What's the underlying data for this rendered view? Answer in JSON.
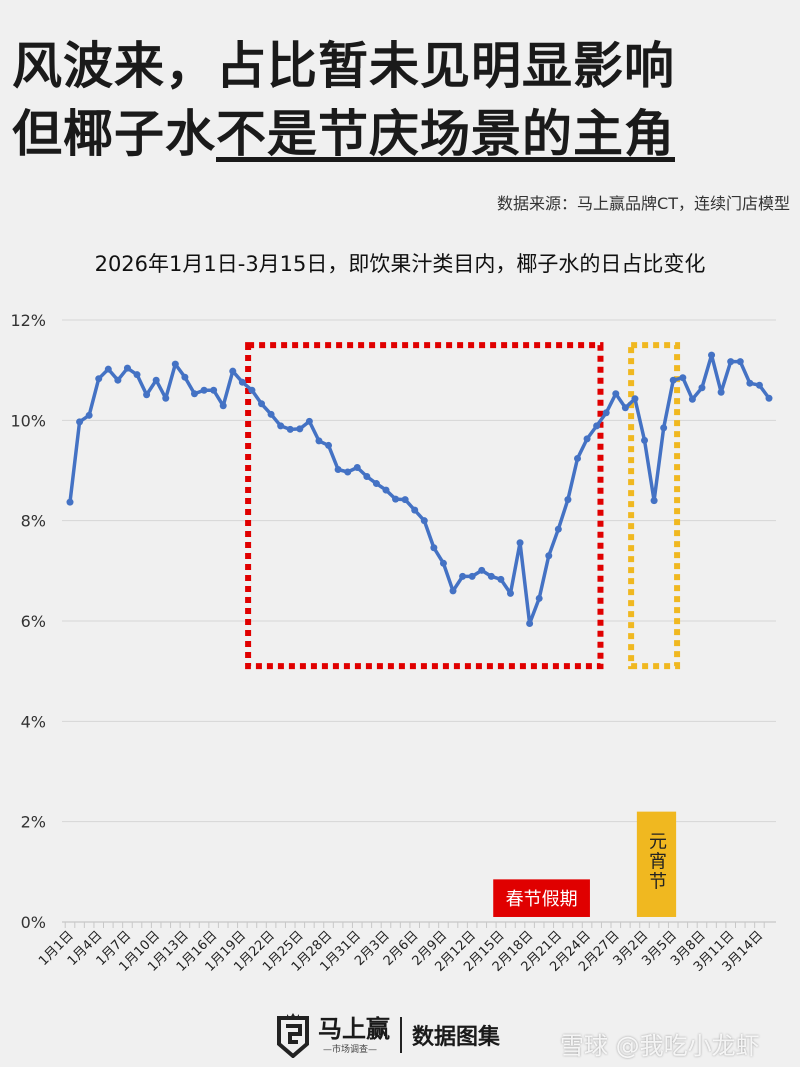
{
  "header": {
    "title_line1": "风波来，占比暂未见明显影响",
    "title_line2_plain": "但椰子水",
    "title_line2_emph": "不是节庆场景的主角",
    "source": "数据来源：马上赢品牌CT，连续门店模型"
  },
  "chart_data": {
    "type": "line",
    "title": "2026年1月1日-3月15日，即饮果汁类目内，椰子水的日占比变化",
    "xlabel": "",
    "ylabel": "",
    "ylim": [
      0,
      12
    ],
    "yticks": [
      "0%",
      "2%",
      "4%",
      "6%",
      "8%",
      "10%",
      "12%"
    ],
    "grid": true,
    "legend": "none",
    "x": [
      "1月1日",
      "1月2日",
      "1月3日",
      "1月4日",
      "1月5日",
      "1月6日",
      "1月7日",
      "1月8日",
      "1月9日",
      "1月10日",
      "1月11日",
      "1月12日",
      "1月13日",
      "1月14日",
      "1月15日",
      "1月16日",
      "1月17日",
      "1月18日",
      "1月19日",
      "1月20日",
      "1月21日",
      "1月22日",
      "1月23日",
      "1月24日",
      "1月25日",
      "1月26日",
      "1月27日",
      "1月28日",
      "1月29日",
      "1月30日",
      "1月31日",
      "2月1日",
      "2月2日",
      "2月3日",
      "2月4日",
      "2月5日",
      "2月6日",
      "2月7日",
      "2月8日",
      "2月9日",
      "2月10日",
      "2月11日",
      "2月12日",
      "2月13日",
      "2月14日",
      "2月15日",
      "2月16日",
      "2月17日",
      "2月18日",
      "2月19日",
      "2月20日",
      "2月21日",
      "2月22日",
      "2月23日",
      "2月24日",
      "2月25日",
      "2月26日",
      "2月27日",
      "2月28日",
      "3月1日",
      "3月2日",
      "3月3日",
      "3月4日",
      "3月5日",
      "3月6日",
      "3月7日",
      "3月8日",
      "3月9日",
      "3月10日",
      "3月11日",
      "3月12日",
      "3月13日",
      "3月14日",
      "3月15日"
    ],
    "xtick_every": 3,
    "values": [
      8.37,
      9.97,
      10.1,
      10.83,
      11.02,
      10.8,
      11.04,
      10.91,
      10.51,
      10.8,
      10.44,
      11.12,
      10.86,
      10.53,
      10.6,
      10.6,
      10.29,
      10.98,
      10.76,
      10.6,
      10.33,
      10.12,
      9.89,
      9.82,
      9.83,
      9.98,
      9.59,
      9.5,
      9.02,
      8.97,
      9.06,
      8.88,
      8.74,
      8.61,
      8.43,
      8.42,
      8.21,
      8.0,
      7.46,
      7.15,
      6.6,
      6.89,
      6.89,
      7.01,
      6.89,
      6.83,
      6.55,
      7.56,
      5.95,
      6.45,
      7.3,
      7.83,
      8.42,
      9.24,
      9.63,
      9.89,
      10.15,
      10.53,
      10.25,
      10.43,
      9.6,
      8.4,
      9.85,
      10.8,
      10.85,
      10.42,
      10.65,
      11.3,
      10.56,
      11.17,
      11.17,
      10.74,
      10.7,
      10.44
    ],
    "line_color": "#4472c4",
    "annotations": [
      {
        "type": "dotted-box",
        "start": "1月20日",
        "end": "2月25日",
        "y_range": [
          5.1,
          11.5
        ],
        "color": "#e00000"
      },
      {
        "type": "dotted-box",
        "start": "3月1日",
        "end": "3月5日",
        "y_range": [
          5.1,
          11.5
        ],
        "color": "#f0b820"
      },
      {
        "type": "label",
        "text": "春节假期",
        "start": "2月14日",
        "end": "2月24日",
        "y_range": [
          0.1,
          0.85
        ],
        "color": "#e00000",
        "text_color": "#ffffff"
      },
      {
        "type": "label",
        "text": "元宵节",
        "start": "3月1日",
        "end": "3月5日",
        "y_range": [
          0.1,
          2.2
        ],
        "color": "#f0b820",
        "text_color": "#222222",
        "vertical": true
      }
    ]
  },
  "footer": {
    "brand": "马上赢",
    "brand_sub": "—市场调查—",
    "collection": "数据图集",
    "watermark": "雪球 @我吃小龙虾"
  }
}
